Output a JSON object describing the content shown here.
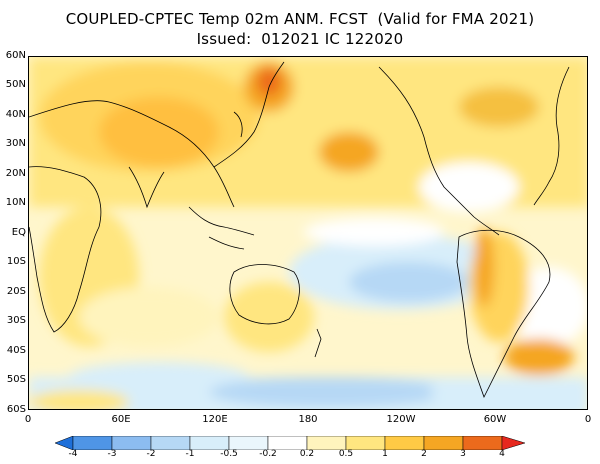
{
  "title": {
    "line1": "COUPLED-CPTEC Temp 02m ANM. FCST  (Valid for FMA 2021)",
    "line2": "Issued:  012021 IC 122020"
  },
  "axes": {
    "lat_labels": [
      "60N",
      "50N",
      "40N",
      "30N",
      "20N",
      "10N",
      "EQ",
      "10S",
      "20S",
      "30S",
      "40S",
      "50S",
      "60S"
    ],
    "lon_labels": [
      "0",
      "60E",
      "120E",
      "180",
      "120W",
      "60W",
      "0"
    ]
  },
  "colorbar": {
    "labels": [
      "-4",
      "-3",
      "-2",
      "-1",
      "-0.5",
      "-0.2",
      "0.2",
      "0.5",
      "1",
      "2",
      "3",
      "4"
    ],
    "colors": [
      "#1e6fd9",
      "#4f95e6",
      "#8cbcf0",
      "#b6d8f5",
      "#d8eefa",
      "#ffffff",
      "#fff4bd",
      "#ffe680",
      "#ffca45",
      "#f5a623",
      "#ec6a1c",
      "#e6281e"
    ]
  }
}
